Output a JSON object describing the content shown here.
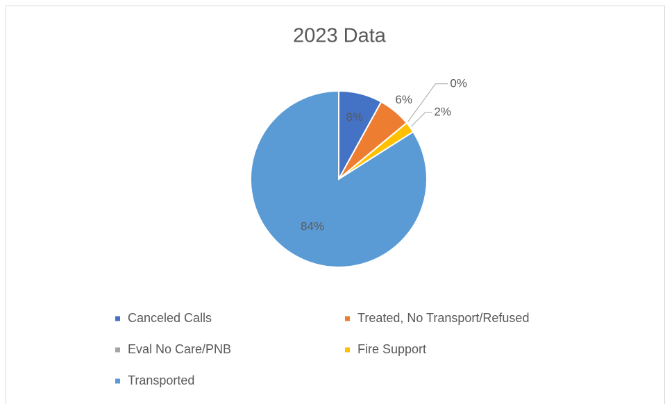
{
  "chart_data": {
    "type": "pie",
    "title": "2023 Data",
    "categories": [
      "Canceled Calls",
      "Treated, No Transport/Refused",
      "Eval No Care/PNB",
      "Fire Support",
      "Transported"
    ],
    "values": [
      8,
      6,
      0,
      2,
      84
    ],
    "value_labels": [
      "8%",
      "6%",
      "0%",
      "2%",
      "84%"
    ],
    "colors": [
      "#4472c4",
      "#ed7d31",
      "#a5a5a5",
      "#ffc000",
      "#5b9bd5"
    ],
    "legend": "bottom"
  }
}
